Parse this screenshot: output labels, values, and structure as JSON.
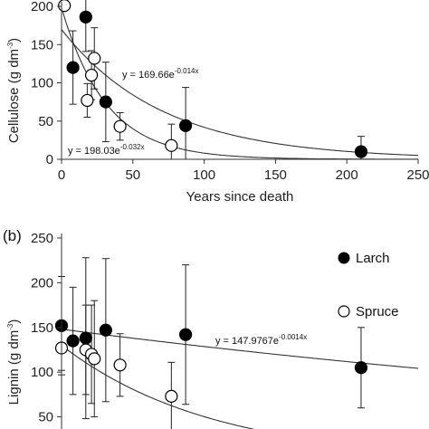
{
  "chart_data": [
    {
      "type": "scatter",
      "panel_label": "",
      "xlabel": "Years since death",
      "ylabel": "Cellulose (g dm",
      "ylabel_sup": "-3",
      "ylabel_tail": ")",
      "xlim": [
        0,
        250
      ],
      "ylim": [
        0,
        200
      ],
      "xticks": [
        "0",
        "50",
        "100",
        "150",
        "200",
        "250"
      ],
      "yticks": [
        "0",
        "50",
        "100",
        "150",
        "200"
      ],
      "series": [
        {
          "name": "Larch",
          "marker": "filled",
          "x": [
            8,
            17,
            31,
            87,
            210
          ],
          "y": [
            120,
            186,
            75,
            44,
            10
          ],
          "err": [
            48,
            45,
            52,
            50,
            20
          ]
        },
        {
          "name": "Spruce",
          "marker": "open",
          "x": [
            2,
            18,
            21,
            23,
            41,
            77
          ],
          "y": [
            201,
            77,
            110,
            132,
            43,
            18
          ],
          "err": [
            0,
            22,
            32,
            40,
            18,
            28
          ]
        }
      ],
      "fits": [
        {
          "series": "Larch",
          "a": 169.66,
          "b": 0.014,
          "eq_prefix": "y = 169.66e",
          "eq_exp": "-0.014x"
        },
        {
          "series": "Spruce",
          "a": 198.03,
          "b": 0.032,
          "eq_prefix": "y = 198.03e",
          "eq_exp": "-0.032x"
        }
      ]
    },
    {
      "type": "scatter",
      "panel_label": "(b)",
      "xlabel": "",
      "ylabel": "Lignin (g dm",
      "ylabel_sup": "-3",
      "ylabel_tail": ")",
      "xlim": [
        0,
        250
      ],
      "ylim": [
        0,
        250
      ],
      "yticks": [
        "50",
        "100",
        "150",
        "200",
        "250"
      ],
      "legend": [
        "Larch",
        "Spruce"
      ],
      "series": [
        {
          "name": "Larch",
          "marker": "filled",
          "x": [
            0,
            8,
            17,
            31,
            87,
            210
          ],
          "y": [
            152,
            135,
            138,
            147,
            142,
            105
          ],
          "err": [
            55,
            60,
            90,
            80,
            78,
            45
          ]
        },
        {
          "name": "Spruce",
          "marker": "open",
          "x": [
            0,
            17,
            21,
            23,
            41,
            77
          ],
          "y": [
            127,
            125,
            120,
            115,
            108,
            73
          ],
          "err": [
            25,
            50,
            55,
            65,
            35,
            38
          ]
        }
      ],
      "fits": [
        {
          "series": "Larch",
          "a": 147.9767,
          "b": 0.0014,
          "eq_prefix": "y = 147.9767e",
          "eq_exp": "-0.0014x"
        },
        {
          "series": "Spruce",
          "a": 130,
          "b": 0.0095,
          "eq_prefix": "",
          "eq_exp": ""
        }
      ]
    }
  ]
}
